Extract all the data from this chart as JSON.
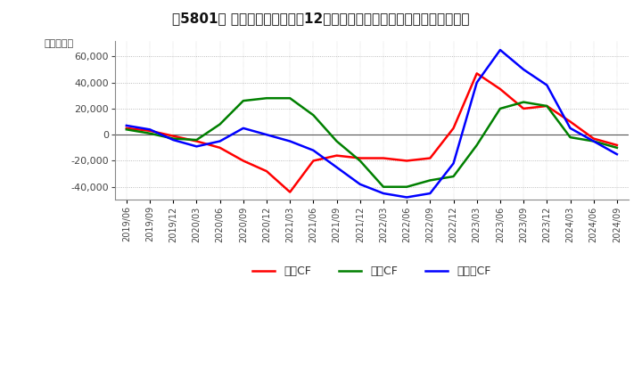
{
  "title": "【5801】 キャッシュフローの12か月移動合計の対前年同期増減額の推移",
  "ylabel": "（百万円）",
  "ylim": [
    -50000,
    72000
  ],
  "yticks": [
    -40000,
    -20000,
    0,
    20000,
    40000,
    60000
  ],
  "legend_labels": [
    "営業CF",
    "投資CF",
    "フリーCF"
  ],
  "colors": [
    "#ff0000",
    "#008000",
    "#0000ff"
  ],
  "dates": [
    "2019/06",
    "2019/09",
    "2019/12",
    "2020/03",
    "2020/06",
    "2020/09",
    "2020/12",
    "2021/03",
    "2021/06",
    "2021/09",
    "2021/12",
    "2022/03",
    "2022/06",
    "2022/09",
    "2022/12",
    "2023/03",
    "2023/06",
    "2023/09",
    "2023/12",
    "2024/03",
    "2024/06",
    "2024/09"
  ],
  "operating_cf": [
    5000,
    3000,
    -1000,
    -5000,
    -10000,
    -20000,
    -28000,
    -44000,
    -20000,
    -16000,
    -18000,
    -18000,
    -20000,
    -18000,
    5000,
    47000,
    35000,
    20000,
    22000,
    10000,
    -3000,
    -8000
  ],
  "investing_cf": [
    4000,
    1000,
    -3000,
    -4000,
    8000,
    26000,
    28000,
    28000,
    15000,
    -5000,
    -20000,
    -40000,
    -40000,
    -35000,
    -32000,
    -8000,
    20000,
    25000,
    22000,
    -2000,
    -5000,
    -10000
  ],
  "free_cf": [
    7000,
    4000,
    -4000,
    -9000,
    -5000,
    5000,
    0,
    -5000,
    -12000,
    -25000,
    -38000,
    -45000,
    -48000,
    -45000,
    -22000,
    40000,
    65000,
    50000,
    38000,
    5000,
    -5000,
    -15000
  ],
  "fig_bg": "#ffffff",
  "plot_bg": "#ffffff",
  "grid_color": "#aaaaaa",
  "grid_style": ":",
  "spine_color": "#888888",
  "tick_color": "#444444",
  "title_fontsize": 11,
  "axis_fontsize": 8,
  "legend_fontsize": 9,
  "linewidth": 1.8
}
